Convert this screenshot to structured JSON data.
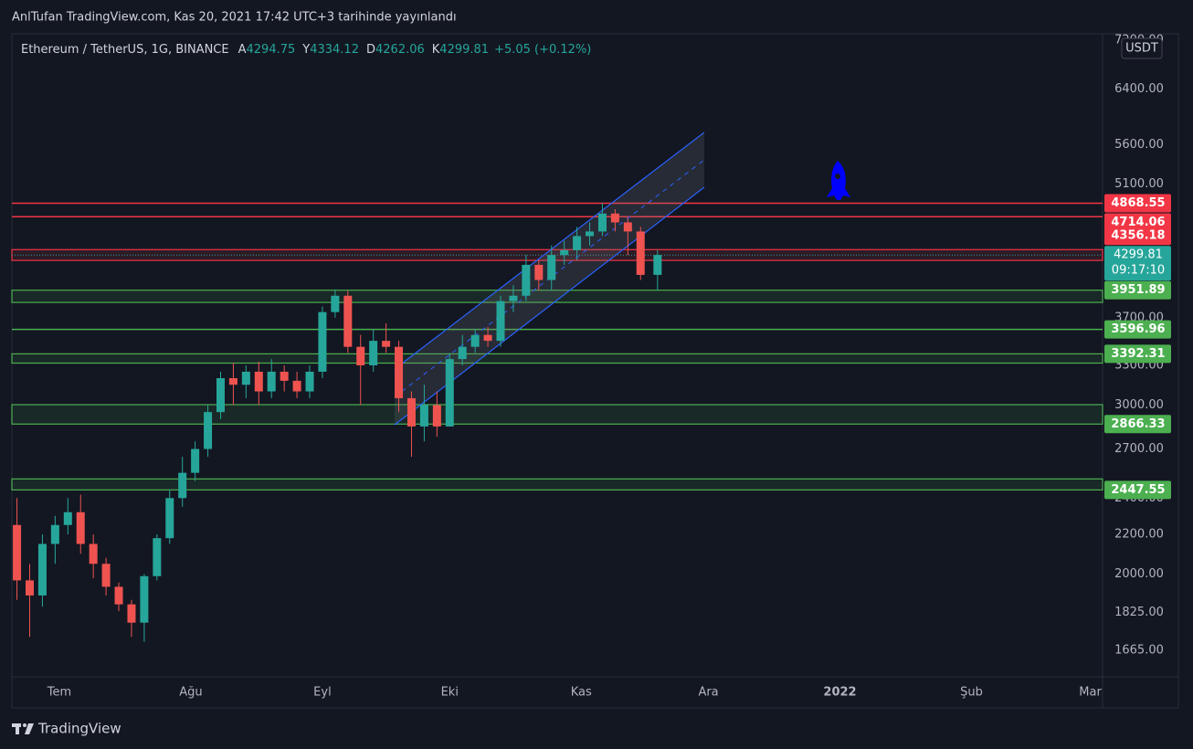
{
  "header": {
    "title": "AnlTufan TradingView.com, Kas 20, 2021 17:42 UTC+3 tarihinde yayınlandı"
  },
  "footer": {
    "brand": "TradingView"
  },
  "chart_data": {
    "type": "candlestick",
    "symbol": "Ethereum / TetherUS, 1G, BINANCE",
    "ohlc": [
      {
        "label": "A",
        "value": 4294.75
      },
      {
        "label": "Y",
        "value": 4334.12
      },
      {
        "label": "D",
        "value": 4262.06
      },
      {
        "label": "K",
        "value": 4299.81
      }
    ],
    "change": "+5.05 (+0.12%)",
    "currency": "USDT",
    "countdown": "09:17:10",
    "log_scale": true,
    "grid": true,
    "up_color": "#26a69a",
    "down_color": "#ef5350",
    "xlim": [
      -11.2,
      245.9
    ],
    "xticks": [
      {
        "value": 0,
        "label": "Tem"
      },
      {
        "value": 31,
        "label": "Ağu"
      },
      {
        "value": 62,
        "label": "Eyl"
      },
      {
        "value": 92,
        "label": "Eki"
      },
      {
        "value": 123,
        "label": "Kas"
      },
      {
        "value": 153,
        "label": "Ara"
      },
      {
        "value": 184,
        "label": "2022"
      },
      {
        "value": 215,
        "label": "Şub"
      },
      {
        "value": 243,
        "label": "Mar"
      }
    ],
    "ylim": [
      1563,
      7311
    ],
    "yticks": [
      {
        "value": 7200,
        "label": "7200.00"
      },
      {
        "value": 6400,
        "label": "6400.00"
      },
      {
        "value": 5600,
        "label": "5600.00"
      },
      {
        "value": 5100,
        "label": "5100.00"
      },
      {
        "value": 3700,
        "label": "3700.00"
      },
      {
        "value": 3300,
        "label": "3300.00"
      },
      {
        "value": 3000,
        "label": "3000.00"
      },
      {
        "value": 2700,
        "label": "2700.00"
      },
      {
        "value": 2400,
        "label": "2400.00"
      },
      {
        "value": 2200,
        "label": "2200.00"
      },
      {
        "value": 2000,
        "label": "2000.00"
      },
      {
        "value": 1825,
        "label": "1825.00"
      },
      {
        "value": 1665,
        "label": "1665.00"
      }
    ],
    "candles": {
      "x": [
        -10,
        -7,
        -4,
        -1,
        2,
        5,
        8,
        11,
        14,
        17,
        20,
        23,
        26,
        29,
        32,
        35,
        38,
        41,
        44,
        47,
        50,
        53,
        56,
        59,
        62,
        65,
        68,
        71,
        74,
        77,
        80,
        83,
        86,
        89,
        92,
        95,
        98,
        101,
        104,
        107,
        110,
        113,
        116,
        119,
        122,
        125,
        128,
        131,
        134,
        137,
        141
      ],
      "open": [
        2250,
        1970,
        1900,
        2150,
        2250,
        2320,
        2150,
        2050,
        1940,
        1860,
        1780,
        1990,
        2180,
        2400,
        2550,
        2700,
        2950,
        3200,
        3150,
        3250,
        3100,
        3250,
        3180,
        3100,
        3250,
        3750,
        3900,
        3450,
        3300,
        3500,
        3450,
        3050,
        2850,
        3000,
        2850,
        3350,
        3450,
        3550,
        3500,
        3850,
        3900,
        4200,
        4050,
        4300,
        4350,
        4500,
        4550,
        4750,
        4650,
        4550,
        4100
      ],
      "high": [
        2400,
        2050,
        2200,
        2300,
        2400,
        2420,
        2200,
        2080,
        1960,
        1880,
        2000,
        2200,
        2450,
        2650,
        2750,
        3000,
        3250,
        3320,
        3300,
        3330,
        3350,
        3300,
        3250,
        3300,
        3800,
        3960,
        3950,
        3550,
        3600,
        3650,
        3500,
        3100,
        3150,
        3100,
        3400,
        3550,
        3600,
        3620,
        3900,
        4000,
        4300,
        4250,
        4400,
        4450,
        4600,
        4650,
        4870,
        4800,
        4700,
        4600,
        4350
      ],
      "low": [
        1880,
        1720,
        1850,
        2050,
        2200,
        2100,
        1980,
        1900,
        1830,
        1720,
        1700,
        1970,
        2150,
        2350,
        2500,
        2650,
        2900,
        3000,
        3050,
        3000,
        3050,
        3100,
        3050,
        3050,
        3200,
        3700,
        3400,
        3000,
        3250,
        3400,
        2950,
        2650,
        2750,
        2780,
        2850,
        3300,
        3400,
        3450,
        3450,
        3750,
        3850,
        3950,
        3950,
        4200,
        4250,
        4400,
        4500,
        4550,
        4300,
        4050,
        3950
      ],
      "close": [
        1970,
        1900,
        2150,
        2250,
        2320,
        2150,
        2050,
        1940,
        1860,
        1780,
        1990,
        2180,
        2400,
        2550,
        2700,
        2950,
        3200,
        3150,
        3250,
        3100,
        3250,
        3180,
        3100,
        3250,
        3750,
        3900,
        3450,
        3300,
        3500,
        3450,
        3050,
        2850,
        3000,
        2850,
        3350,
        3450,
        3550,
        3500,
        3850,
        3900,
        4200,
        4050,
        4300,
        4350,
        4500,
        4550,
        4750,
        4650,
        4550,
        4100,
        4300
      ]
    },
    "channel": {
      "x": [
        79,
        152
      ],
      "upper": [
        3270,
        5771
      ],
      "lower": [
        2861,
        5059
      ],
      "color": "#2962ff"
    },
    "levels": [
      {
        "value": 4868.55,
        "color": "#f23645"
      },
      {
        "value": 4714.06,
        "color": "#f23645"
      },
      {
        "value": 4356.18,
        "color": "#f23645",
        "zone_to": 4245
      },
      {
        "value": 3951.89,
        "color": "#4caf50",
        "zone_to": 3838
      },
      {
        "value": 3596.96,
        "color": "#4caf50"
      },
      {
        "value": 3392.31,
        "color": "#4caf50",
        "zone_to": 3318
      },
      {
        "value": 2866.33,
        "color": "#4caf50",
        "zone_to": 3003
      },
      {
        "value": 2447.55,
        "color": "#4caf50",
        "zone_to": 2513
      }
    ],
    "last_color": "#26a69a"
  }
}
